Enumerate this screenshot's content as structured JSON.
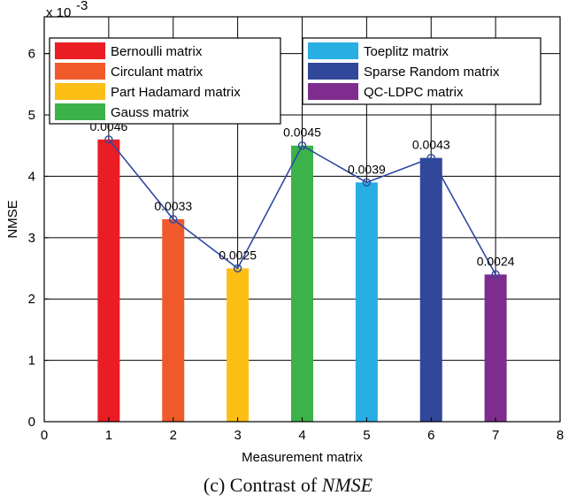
{
  "chart_data": {
    "type": "bar",
    "categories": [
      "1",
      "2",
      "3",
      "4",
      "5",
      "6",
      "7"
    ],
    "values": [
      0.0046,
      0.0033,
      0.0025,
      0.0045,
      0.0039,
      0.0043,
      0.0024
    ],
    "value_labels": [
      "0.0046",
      "0.0033",
      "0.0025",
      "0.0045",
      "0.0039",
      "0.0043",
      "0.0024"
    ],
    "series_names": [
      "Bernoulli matrix",
      "Circulant matrix",
      "Part Hadamard matrix",
      "Gauss matrix",
      "Toeplitz matrix",
      "Sparse Random matrix",
      "QC-LDPC matrix"
    ],
    "colors": [
      "#ea1c24",
      "#f05a2a",
      "#fdbe16",
      "#3bb24a",
      "#27aee3",
      "#30479a",
      "#7e2d8e"
    ],
    "line_color": "#2e4aa0",
    "xlabel": "Measurement matrix",
    "ylabel": "NMSE",
    "xlim": [
      0,
      8
    ],
    "ylim": [
      0,
      6.6
    ],
    "y_scale_factor": 0.001,
    "y_exponent_label": "x 10",
    "y_exponent_power": "-3",
    "x_ticks": [
      0,
      1,
      2,
      3,
      4,
      5,
      6,
      7,
      8
    ],
    "x_tick_labels": [
      "0",
      "1",
      "2",
      "3",
      "4",
      "5",
      "6",
      "7",
      "8"
    ],
    "y_ticks": [
      0,
      1,
      2,
      3,
      4,
      5,
      6
    ],
    "y_tick_labels": [
      "0",
      "1",
      "2",
      "3",
      "4",
      "5",
      "6"
    ],
    "grid": true,
    "legend_left": [
      "Bernoulli matrix",
      "Circulant matrix",
      "Part Hadamard matrix",
      "Gauss matrix"
    ],
    "legend_right": [
      "Toeplitz matrix",
      "Sparse Random matrix",
      "QC-LDPC matrix"
    ],
    "legend_placement": "top"
  },
  "caption": {
    "prefix": "(c) Contrast of ",
    "italic": "NMSE"
  }
}
